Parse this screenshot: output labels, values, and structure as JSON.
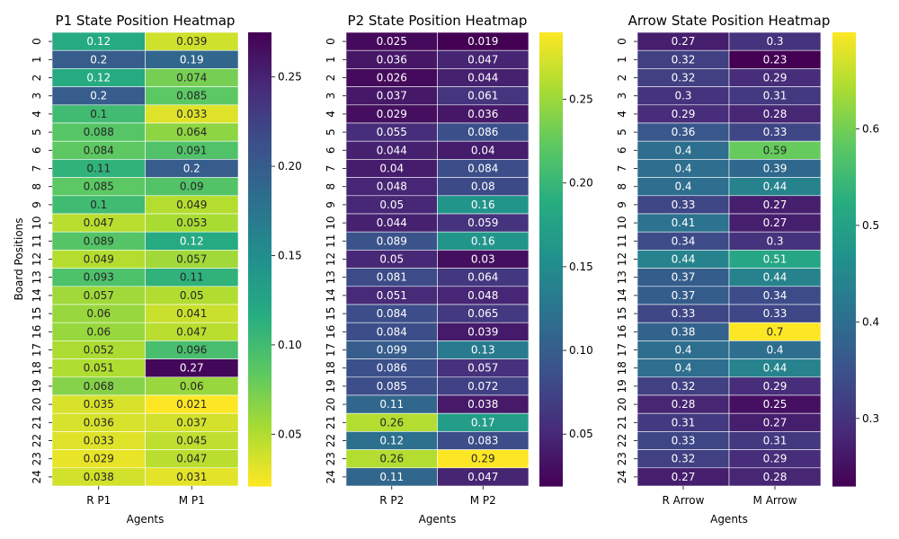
{
  "chart_data": [
    {
      "type": "heatmap",
      "title": "P1 State Position Heatmap",
      "xlabel": "Agents",
      "ylabel": "Board Positions",
      "columns": [
        "R P1",
        "M P1"
      ],
      "rows": [
        "0",
        "1",
        "2",
        "3",
        "4",
        "5",
        "6",
        "7",
        "8",
        "9",
        "10",
        "11",
        "12",
        "13",
        "14",
        "15",
        "16",
        "17",
        "18",
        "19",
        "20",
        "21",
        "22",
        "23",
        "24"
      ],
      "values": [
        [
          0.12,
          0.039
        ],
        [
          0.2,
          0.19
        ],
        [
          0.12,
          0.074
        ],
        [
          0.2,
          0.085
        ],
        [
          0.1,
          0.033
        ],
        [
          0.088,
          0.064
        ],
        [
          0.084,
          0.091
        ],
        [
          0.11,
          0.2
        ],
        [
          0.085,
          0.09
        ],
        [
          0.1,
          0.049
        ],
        [
          0.047,
          0.053
        ],
        [
          0.089,
          0.12
        ],
        [
          0.049,
          0.057
        ],
        [
          0.093,
          0.11
        ],
        [
          0.057,
          0.05
        ],
        [
          0.06,
          0.041
        ],
        [
          0.06,
          0.047
        ],
        [
          0.052,
          0.096
        ],
        [
          0.051,
          0.27
        ],
        [
          0.068,
          0.06
        ],
        [
          0.035,
          0.021
        ],
        [
          0.036,
          0.037
        ],
        [
          0.033,
          0.045
        ],
        [
          0.029,
          0.047
        ],
        [
          0.038,
          0.031
        ]
      ],
      "colormap": "viridis_r",
      "vmin": 0.021,
      "vmax": 0.275,
      "colorbar_ticks": [
        "0.05",
        "0.10",
        "0.15",
        "0.20",
        "0.25"
      ]
    },
    {
      "type": "heatmap",
      "title": "P2 State Position Heatmap",
      "xlabel": "Agents",
      "ylabel": "",
      "columns": [
        "R P2",
        "M P2"
      ],
      "rows": [
        "0",
        "1",
        "2",
        "3",
        "4",
        "5",
        "6",
        "7",
        "8",
        "9",
        "10",
        "11",
        "12",
        "13",
        "14",
        "15",
        "16",
        "17",
        "18",
        "19",
        "20",
        "21",
        "22",
        "23",
        "24"
      ],
      "values": [
        [
          0.025,
          0.019
        ],
        [
          0.036,
          0.047
        ],
        [
          0.026,
          0.044
        ],
        [
          0.037,
          0.061
        ],
        [
          0.029,
          0.036
        ],
        [
          0.055,
          0.086
        ],
        [
          0.044,
          0.04
        ],
        [
          0.04,
          0.084
        ],
        [
          0.048,
          0.08
        ],
        [
          0.05,
          0.16
        ],
        [
          0.044,
          0.059
        ],
        [
          0.089,
          0.16
        ],
        [
          0.05,
          0.03
        ],
        [
          0.081,
          0.064
        ],
        [
          0.051,
          0.048
        ],
        [
          0.084,
          0.065
        ],
        [
          0.084,
          0.039
        ],
        [
          0.099,
          0.13
        ],
        [
          0.086,
          0.057
        ],
        [
          0.085,
          0.072
        ],
        [
          0.11,
          0.038
        ],
        [
          0.26,
          0.17
        ],
        [
          0.12,
          0.083
        ],
        [
          0.26,
          0.29
        ],
        [
          0.11,
          0.047
        ]
      ],
      "colormap": "viridis",
      "vmin": 0.019,
      "vmax": 0.29,
      "colorbar_ticks": [
        "0.05",
        "0.10",
        "0.15",
        "0.20",
        "0.25"
      ]
    },
    {
      "type": "heatmap",
      "title": "Arrow State Position Heatmap",
      "xlabel": "Agents",
      "ylabel": "",
      "columns": [
        "R Arrow",
        "M Arrow"
      ],
      "rows": [
        "0",
        "1",
        "2",
        "3",
        "4",
        "5",
        "6",
        "7",
        "8",
        "9",
        "10",
        "11",
        "12",
        "13",
        "14",
        "15",
        "16",
        "17",
        "18",
        "19",
        "20",
        "21",
        "22",
        "23",
        "24"
      ],
      "values": [
        [
          0.27,
          0.3
        ],
        [
          0.32,
          0.23
        ],
        [
          0.32,
          0.29
        ],
        [
          0.3,
          0.31
        ],
        [
          0.29,
          0.28
        ],
        [
          0.36,
          0.33
        ],
        [
          0.4,
          0.59
        ],
        [
          0.4,
          0.39
        ],
        [
          0.4,
          0.44
        ],
        [
          0.33,
          0.27
        ],
        [
          0.41,
          0.27
        ],
        [
          0.34,
          0.3
        ],
        [
          0.44,
          0.51
        ],
        [
          0.37,
          0.44
        ],
        [
          0.37,
          0.34
        ],
        [
          0.33,
          0.33
        ],
        [
          0.38,
          0.7
        ],
        [
          0.4,
          0.4
        ],
        [
          0.4,
          0.44
        ],
        [
          0.32,
          0.29
        ],
        [
          0.28,
          0.25
        ],
        [
          0.31,
          0.27
        ],
        [
          0.33,
          0.31
        ],
        [
          0.32,
          0.29
        ],
        [
          0.27,
          0.28
        ]
      ],
      "colormap": "viridis",
      "vmin": 0.23,
      "vmax": 0.7,
      "colorbar_ticks": [
        "0.3",
        "0.4",
        "0.5",
        "0.6"
      ]
    }
  ]
}
